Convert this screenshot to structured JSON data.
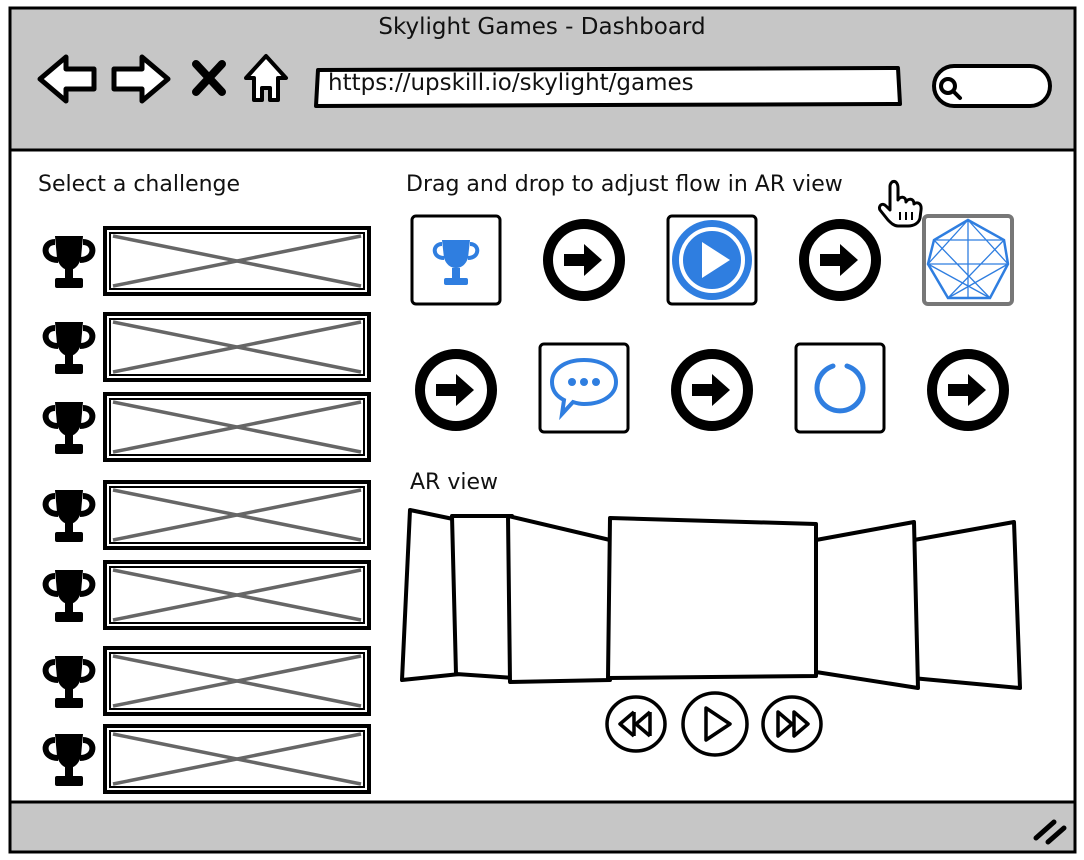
{
  "window": {
    "title": "Skylight Games - Dashboard"
  },
  "nav": {
    "back_icon": "arrow-left-icon",
    "forward_icon": "arrow-right-icon",
    "stop_icon": "close-icon",
    "home_icon": "home-icon",
    "url": "https://upskill.io/skylight/games",
    "search_icon": "search-icon"
  },
  "left_panel": {
    "heading": "Select a challenge",
    "challenges": [
      {
        "icon": "trophy-icon"
      },
      {
        "icon": "trophy-icon"
      },
      {
        "icon": "trophy-icon"
      },
      {
        "icon": "trophy-icon"
      },
      {
        "icon": "trophy-icon"
      },
      {
        "icon": "trophy-icon"
      },
      {
        "icon": "trophy-icon"
      }
    ]
  },
  "flow_panel": {
    "heading": "Drag and drop to adjust flow in AR view",
    "cursor_icon": "hand-pointer-icon",
    "row1": [
      "trophy-icon",
      "arrow-circle-right-icon",
      "play-circle-icon",
      "arrow-circle-right-icon",
      "network-hexagon-icon"
    ],
    "row2": [
      "arrow-circle-right-icon",
      "chat-bubble-icon",
      "arrow-circle-right-icon",
      "loading-spinner-icon",
      "arrow-circle-right-icon"
    ]
  },
  "ar_view": {
    "heading": "AR view",
    "controls": [
      "rewind-icon",
      "play-icon",
      "fast-forward-icon"
    ]
  },
  "colors": {
    "accent": "#2f7ee0",
    "chrome": "#c6c6c6",
    "ink": "#000000"
  }
}
